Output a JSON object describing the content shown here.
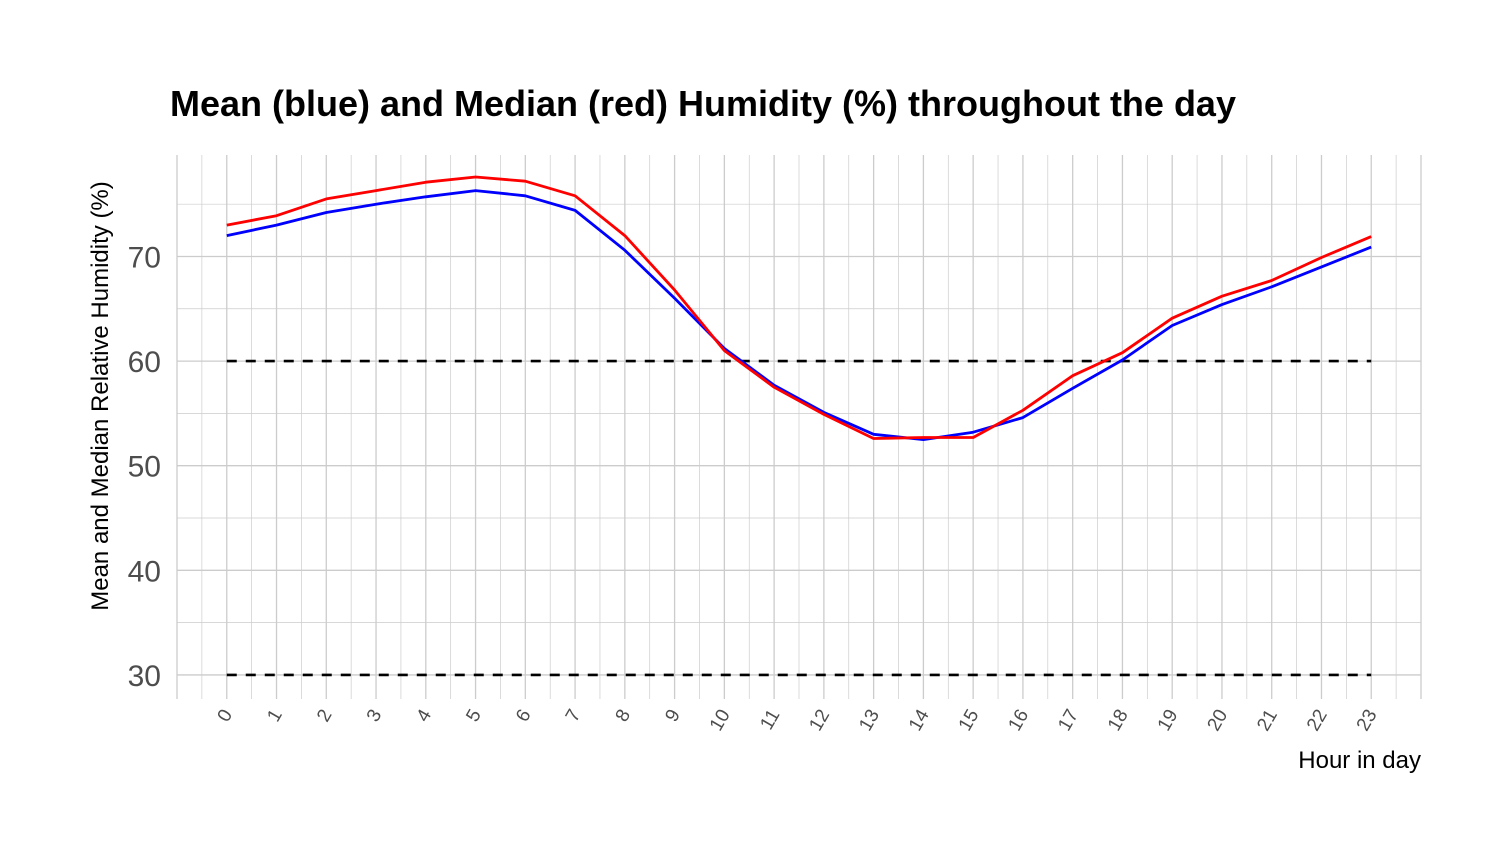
{
  "chart_data": {
    "type": "line",
    "title": "Mean (blue) and Median (red) Humidity (%) throughout the day",
    "xlabel": "Hour in day",
    "ylabel": "Mean and Median Relative Humidity (%)",
    "x": [
      0,
      1,
      2,
      3,
      4,
      5,
      6,
      7,
      8,
      9,
      10,
      11,
      12,
      13,
      14,
      15,
      16,
      17,
      18,
      19,
      20,
      21,
      22,
      23
    ],
    "x_tick_labels": [
      "0",
      "1",
      "2",
      "3",
      "4",
      "5",
      "6",
      "7",
      "8",
      "9",
      "10",
      "11",
      "12",
      "13",
      "14",
      "15",
      "16",
      "17",
      "18",
      "19",
      "20",
      "21",
      "22",
      "23"
    ],
    "y_ticks": [
      30,
      40,
      50,
      60,
      70
    ],
    "y_tick_labels": [
      "30",
      "40",
      "50",
      "60",
      "70"
    ],
    "xlim": [
      -1,
      24
    ],
    "ylim": [
      27.7,
      79.7
    ],
    "grid": true,
    "legend": "none",
    "series": [
      {
        "color": "#0000ff",
        "values": [
          72.0,
          73.0,
          74.2,
          75.0,
          75.7,
          76.3,
          75.8,
          74.4,
          70.6,
          66.0,
          61.2,
          57.7,
          55.1,
          53.0,
          52.5,
          53.2,
          54.6,
          57.4,
          60.1,
          63.4,
          65.4,
          67.1,
          69.0,
          70.9
        ]
      },
      {
        "color": "#ff0000",
        "values": [
          73.0,
          73.9,
          75.5,
          76.3,
          77.1,
          77.6,
          77.2,
          75.8,
          72.0,
          66.8,
          61.0,
          57.5,
          54.9,
          52.6,
          52.7,
          52.7,
          55.3,
          58.6,
          60.8,
          64.1,
          66.2,
          67.7,
          69.9,
          71.9
        ]
      }
    ],
    "reference_lines": [
      {
        "y": 60,
        "color": "#000000",
        "style": "dashed"
      },
      {
        "y": 30,
        "color": "#000000",
        "style": "dashed"
      }
    ]
  }
}
